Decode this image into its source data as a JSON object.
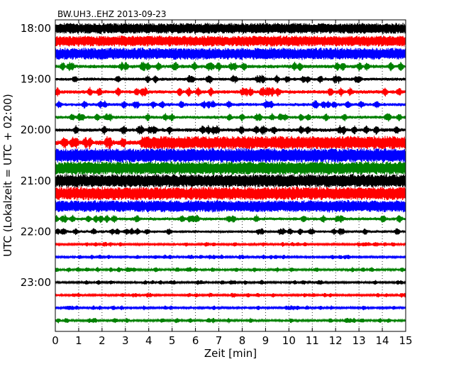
{
  "chart_data": {
    "type": "line",
    "title": "BW.UH3..EHZ 2013-09-23",
    "xlabel": "Zeit  [min]",
    "ylabel": "UTC (Lokalzeit = UTC + 02:00)",
    "xlim": [
      0,
      15
    ],
    "x_ticks": [
      "0",
      "1",
      "2",
      "3",
      "4",
      "5",
      "6",
      "7",
      "8",
      "9",
      "10",
      "11",
      "12",
      "13",
      "14",
      "15"
    ],
    "y_ticks": [
      "18:00",
      "19:00",
      "20:00",
      "21:00",
      "22:00",
      "23:00"
    ],
    "grid": "vertical dotted at every minute",
    "trace_colors": [
      "#000000",
      "#ff0000",
      "#0000ff",
      "#008000"
    ],
    "traces": [
      {
        "start": "18:00",
        "color": "#000000",
        "amplitude": 0.45,
        "saturated_from_min": 0
      },
      {
        "start": "18:15",
        "color": "#ff0000",
        "amplitude": 0.45,
        "saturated_from_min": 0
      },
      {
        "start": "18:30",
        "color": "#0000ff",
        "amplitude": 0.5,
        "saturated_from_min": 0
      },
      {
        "start": "18:45",
        "color": "#008000",
        "amplitude": 0.4
      },
      {
        "start": "19:00",
        "color": "#000000",
        "amplitude": 0.35
      },
      {
        "start": "19:15",
        "color": "#ff0000",
        "amplitude": 0.4
      },
      {
        "start": "19:30",
        "color": "#0000ff",
        "amplitude": 0.35
      },
      {
        "start": "19:45",
        "color": "#008000",
        "amplitude": 0.35
      },
      {
        "start": "20:00",
        "color": "#000000",
        "amplitude": 0.4
      },
      {
        "start": "20:15",
        "color": "#ff0000",
        "amplitude": 0.55,
        "saturated_from_min": 3.7
      },
      {
        "start": "20:30",
        "color": "#0000ff",
        "amplitude": 0.6,
        "saturated_from_min": 0
      },
      {
        "start": "20:45",
        "color": "#008000",
        "amplitude": 0.55,
        "saturated_from_min": 0
      },
      {
        "start": "21:00",
        "color": "#000000",
        "amplitude": 0.55,
        "saturated_from_min": 0
      },
      {
        "start": "21:15",
        "color": "#ff0000",
        "amplitude": 0.55,
        "saturated_from_min": 0
      },
      {
        "start": "21:30",
        "color": "#0000ff",
        "amplitude": 0.5,
        "saturated_from_min": 0
      },
      {
        "start": "21:45",
        "color": "#008000",
        "amplitude": 0.35
      },
      {
        "start": "22:00",
        "color": "#000000",
        "amplitude": 0.3
      },
      {
        "start": "22:15",
        "color": "#ff0000",
        "amplitude": 0.2
      },
      {
        "start": "22:30",
        "color": "#0000ff",
        "amplitude": 0.2
      },
      {
        "start": "22:45",
        "color": "#008000",
        "amplitude": 0.22
      },
      {
        "start": "23:00",
        "color": "#000000",
        "amplitude": 0.2
      },
      {
        "start": "23:15",
        "color": "#ff0000",
        "amplitude": 0.2
      },
      {
        "start": "23:30",
        "color": "#0000ff",
        "amplitude": 0.2
      },
      {
        "start": "23:45",
        "color": "#008000",
        "amplitude": 0.22
      }
    ]
  }
}
